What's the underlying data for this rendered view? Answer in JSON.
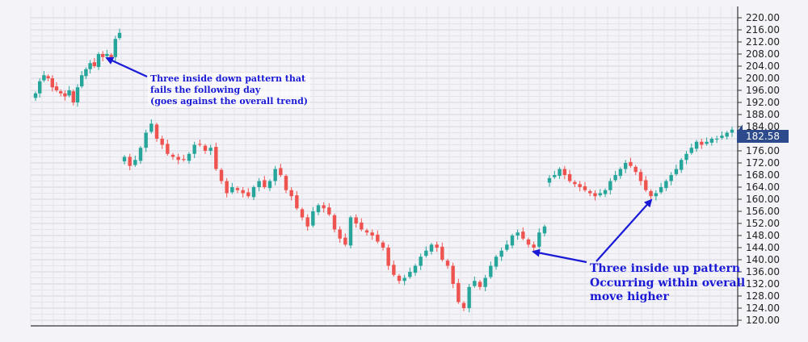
{
  "chart_data": {
    "type": "candlestick",
    "ylim": [
      120,
      220
    ],
    "y_ticks": [
      "220.00",
      "216.00",
      "212.00",
      "208.00",
      "204.00",
      "200.00",
      "196.00",
      "192.00",
      "188.00",
      "184.00",
      "180.00",
      "176.00",
      "172.00",
      "168.00",
      "164.00",
      "160.00",
      "156.00",
      "152.00",
      "148.00",
      "144.00",
      "140.00",
      "136.00",
      "132.00",
      "128.00",
      "124.00",
      "120.00"
    ],
    "last_price": "182.58",
    "colors": {
      "up": "#26a69a",
      "down": "#ef5350",
      "annotation": "#1a1ad6",
      "price_tag": "#2c4a8c"
    },
    "closes": [
      195,
      199,
      201,
      200,
      197,
      196,
      195,
      194,
      196,
      192,
      197,
      201,
      203,
      205,
      204,
      208,
      207,
      208,
      207,
      213,
      215,
      174,
      171,
      173,
      177,
      182,
      185,
      180,
      178,
      175,
      174,
      173,
      173,
      175,
      178,
      178,
      176,
      177,
      170,
      166,
      162,
      164,
      163,
      162,
      161,
      164,
      166,
      164,
      166,
      170,
      168,
      163,
      161,
      157,
      154,
      151,
      156,
      158,
      157,
      155,
      150,
      147,
      145,
      154,
      152,
      150,
      149,
      148,
      146,
      144,
      138,
      135,
      133,
      134,
      136,
      138,
      141,
      143,
      145,
      144,
      140,
      138,
      132,
      126,
      124,
      131,
      133,
      131,
      134,
      138,
      141,
      143,
      145,
      148,
      149,
      147,
      145,
      144,
      149,
      151,
      167,
      168,
      170,
      168,
      166,
      165,
      164,
      163,
      162,
      161,
      162,
      163,
      166,
      168,
      170,
      172,
      171,
      169,
      166,
      163,
      161,
      162,
      164,
      166,
      168,
      170,
      173,
      175,
      177,
      179,
      178,
      179,
      180,
      180,
      181,
      182,
      183
    ],
    "annotations": [
      {
        "lines": [
          "Three inside down pattern that",
          "fails the following day",
          "(goes against the overall trend)"
        ]
      },
      {
        "lines": [
          "Three inside up pattern",
          "Occurring within overall",
          "move higher"
        ]
      }
    ]
  }
}
